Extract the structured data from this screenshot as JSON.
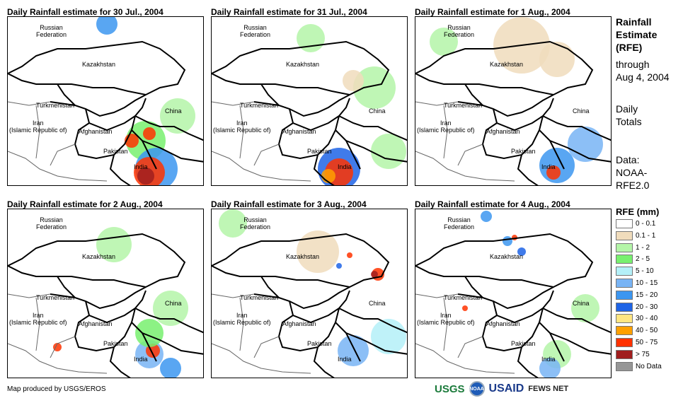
{
  "panels": [
    {
      "title": "Daily Rainfall estimate for 30 Jul., 2004"
    },
    {
      "title": "Daily Rainfall estimate for 31 Jul., 2004"
    },
    {
      "title": "Daily Rainfall estimate for 1 Aug., 2004"
    },
    {
      "title": "Daily Rainfall estimate for 2 Aug., 2004"
    },
    {
      "title": "Daily Rainfall estimate for 3 Aug., 2004"
    },
    {
      "title": "Daily Rainfall estimate for 4 Aug., 2004"
    }
  ],
  "map_labels": {
    "russia": "Russian\nFederation",
    "kazakhstan": "Kazakhstan",
    "turkmenistan": "Turkmenistan",
    "iran": "Iran\n(Islamic Republic of)",
    "afghanistan": "Afghanistan",
    "pakistan": "Pakistan",
    "india": "India",
    "china": "China"
  },
  "side": {
    "title1": "Rainfall",
    "title2": "Estimate",
    "title3": "(RFE)",
    "through": "through",
    "date": "Aug 4, 2004",
    "daily": "Daily",
    "totals": "Totals",
    "data": "Data:",
    "source1": "NOAA-",
    "source2": "RFE2.0"
  },
  "legend": {
    "title": "RFE (mm)",
    "items": [
      {
        "label": "0 - 0.1",
        "color": "#ffffff"
      },
      {
        "label": "0.1 - 1",
        "color": "#f0dcbc"
      },
      {
        "label": "1 - 2",
        "color": "#b4f5a8"
      },
      {
        "label": "2 - 5",
        "color": "#78f06e"
      },
      {
        "label": "5 - 10",
        "color": "#b4f0f8"
      },
      {
        "label": "10 - 15",
        "color": "#78b4f5"
      },
      {
        "label": "15 - 20",
        "color": "#3c96f0"
      },
      {
        "label": "20 - 30",
        "color": "#1e64e6"
      },
      {
        "label": "30 - 40",
        "color": "#ffe682"
      },
      {
        "label": "40 - 50",
        "color": "#ffa000"
      },
      {
        "label": "50 - 75",
        "color": "#ff3200"
      },
      {
        "label": "> 75",
        "color": "#a01e1e"
      },
      {
        "label": "No Data",
        "color": "#969696"
      }
    ]
  },
  "footer": {
    "credit": "Map produced by USGS/EROS",
    "logos": [
      "USGS",
      "NOAA",
      "USAID",
      "FEWS NET"
    ]
  }
}
